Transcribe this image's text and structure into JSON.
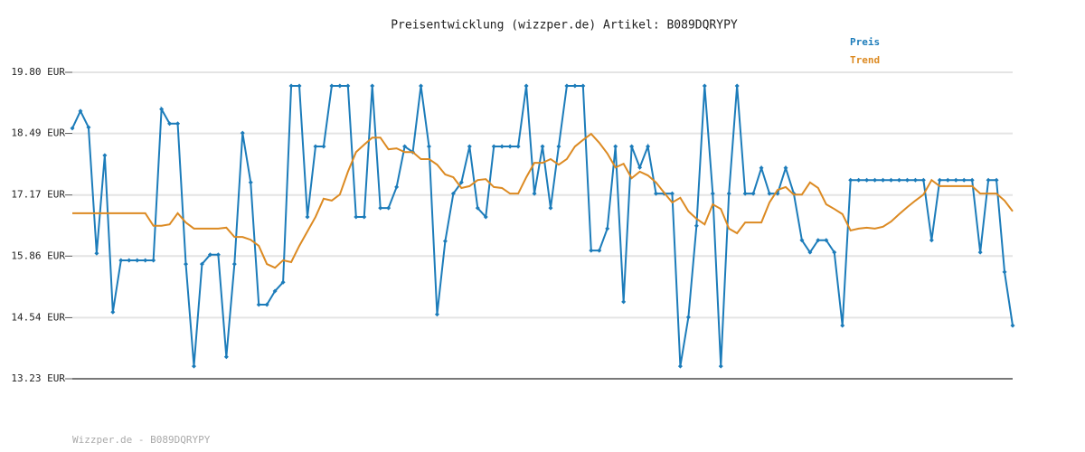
{
  "chart_data": {
    "type": "line",
    "title": "Preisentwicklung (wizzper.de) Artikel: B089DQRYPY",
    "footer": "Wizzper.de - B089DQRYPY",
    "ylim": [
      13.23,
      19.8
    ],
    "yticks": [
      {
        "value": 13.23,
        "label": "13.23 EUR"
      },
      {
        "value": 14.54,
        "label": "14.54 EUR"
      },
      {
        "value": 15.86,
        "label": "15.86 EUR"
      },
      {
        "value": 17.17,
        "label": "17.17 EUR"
      },
      {
        "value": 18.49,
        "label": "18.49 EUR"
      },
      {
        "value": 19.8,
        "label": "19.80 EUR"
      }
    ],
    "grid": true,
    "legend": "top-right",
    "series": [
      {
        "name": "Preis",
        "color": "#1c7cba",
        "markers": true,
        "values": [
          18.6,
          18.97,
          18.62,
          15.92,
          18.02,
          14.66,
          15.77,
          15.77,
          15.77,
          15.77,
          15.77,
          19.01,
          18.7,
          18.7,
          15.69,
          13.5,
          15.69,
          15.89,
          15.89,
          13.7,
          15.69,
          18.5,
          17.44,
          14.82,
          14.82,
          15.11,
          15.3,
          19.51,
          19.51,
          16.7,
          18.21,
          18.21,
          19.51,
          19.51,
          19.51,
          16.7,
          16.7,
          19.51,
          16.89,
          16.89,
          17.34,
          18.21,
          18.09,
          19.51,
          18.21,
          14.61,
          16.18,
          17.2,
          17.44,
          18.21,
          16.89,
          16.7,
          18.21,
          18.21,
          18.21,
          18.21,
          19.51,
          17.2,
          18.21,
          16.89,
          18.21,
          19.51,
          19.51,
          19.51,
          15.98,
          15.98,
          16.45,
          18.21,
          14.88,
          18.21,
          17.76,
          18.21,
          17.2,
          17.2,
          17.2,
          13.5,
          14.55,
          16.51,
          19.51,
          17.2,
          13.5,
          17.2,
          19.51,
          17.2,
          17.2,
          17.75,
          17.2,
          17.2,
          17.75,
          17.2,
          16.2,
          15.94,
          16.2,
          16.2,
          15.94,
          14.37,
          17.49,
          17.49,
          17.49,
          17.49,
          17.49,
          17.49,
          17.49,
          17.49,
          17.49,
          17.49,
          16.2,
          17.49,
          17.49,
          17.49,
          17.49,
          17.49,
          15.94,
          17.49,
          17.49,
          15.52,
          14.37
        ]
      },
      {
        "name": "Trend",
        "color": "#dc8a22",
        "markers": false,
        "values": [
          16.78,
          16.78,
          16.78,
          16.78,
          16.78,
          16.78,
          16.78,
          16.78,
          16.78,
          16.78,
          16.51,
          16.51,
          16.54,
          16.78,
          16.58,
          16.45,
          16.45,
          16.45,
          16.45,
          16.47,
          16.27,
          16.27,
          16.21,
          16.08,
          15.69,
          15.61,
          15.77,
          15.73,
          16.08,
          16.39,
          16.7,
          17.09,
          17.05,
          17.18,
          17.67,
          18.09,
          18.25,
          18.4,
          18.4,
          18.15,
          18.17,
          18.09,
          18.09,
          17.94,
          17.94,
          17.82,
          17.61,
          17.55,
          17.32,
          17.36,
          17.49,
          17.51,
          17.34,
          17.32,
          17.2,
          17.2,
          17.55,
          17.86,
          17.86,
          17.94,
          17.82,
          17.94,
          18.21,
          18.35,
          18.48,
          18.29,
          18.06,
          17.76,
          17.84,
          17.53,
          17.67,
          17.59,
          17.44,
          17.22,
          17.01,
          17.11,
          16.82,
          16.66,
          16.54,
          16.97,
          16.87,
          16.45,
          16.35,
          16.58,
          16.58,
          16.58,
          17.01,
          17.28,
          17.34,
          17.18,
          17.18,
          17.44,
          17.32,
          16.97,
          16.87,
          16.76,
          16.41,
          16.45,
          16.47,
          16.45,
          16.49,
          16.6,
          16.76,
          16.91,
          17.05,
          17.18,
          17.49,
          17.36,
          17.36,
          17.36,
          17.36,
          17.36,
          17.2,
          17.2,
          17.2,
          17.05,
          16.82
        ]
      }
    ]
  }
}
